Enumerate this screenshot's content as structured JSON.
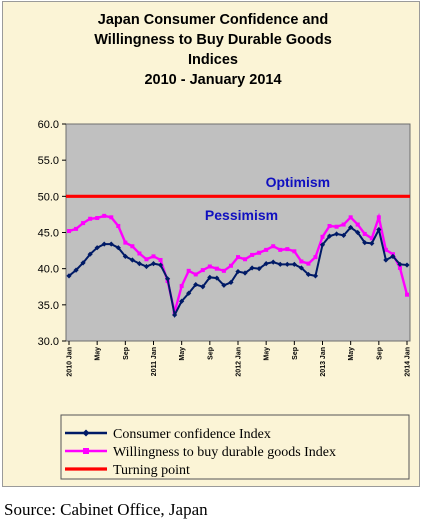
{
  "source": "Source: Cabinet Office, Japan",
  "chart_data": {
    "type": "line",
    "title_lines": [
      "Japan Consumer Confidence and",
      "Willingness to Buy Durable Goods",
      "Indices",
      "2010 -  January 2014"
    ],
    "xlabel": "",
    "ylabel": "",
    "ylim": [
      30.0,
      60.0
    ],
    "yticks": [
      "60.0",
      "55.0",
      "50.0",
      "45.0",
      "40.0",
      "35.0",
      "30.0"
    ],
    "ytick_values": [
      60,
      55,
      50,
      45,
      40,
      35,
      30
    ],
    "x_tick_labels": [
      {
        "index": 0,
        "label": "2010 Jan"
      },
      {
        "index": 4,
        "label": "May"
      },
      {
        "index": 8,
        "label": "Sep"
      },
      {
        "index": 12,
        "label": "2011 Jan"
      },
      {
        "index": 16,
        "label": "May"
      },
      {
        "index": 20,
        "label": "Sep"
      },
      {
        "index": 24,
        "label": "2012 Jan"
      },
      {
        "index": 28,
        "label": "May"
      },
      {
        "index": 32,
        "label": "Sep"
      },
      {
        "index": 36,
        "label": "2013 Jan"
      },
      {
        "index": 40,
        "label": "May"
      },
      {
        "index": 44,
        "label": "Sep"
      },
      {
        "index": 48,
        "label": "2014 Jan"
      }
    ],
    "x_count": 49,
    "grid": false,
    "plot_background": "#c0c0c0",
    "series": [
      {
        "name": "Consumer confidence Index",
        "color": "#001a66",
        "values": [
          39.0,
          39.8,
          40.8,
          42.0,
          42.9,
          43.4,
          43.4,
          42.9,
          41.7,
          41.2,
          40.7,
          40.3,
          40.7,
          40.5,
          38.6,
          33.6,
          35.5,
          36.6,
          37.8,
          37.5,
          38.8,
          38.7,
          37.7,
          38.1,
          39.6,
          39.4,
          40.1,
          40.0,
          40.7,
          40.9,
          40.6,
          40.6,
          40.6,
          40.1,
          39.2,
          39.0,
          43.3,
          44.5,
          44.8,
          44.6,
          45.7,
          45.0,
          43.6,
          43.5,
          45.4,
          41.2,
          41.7,
          40.6,
          40.5
        ]
      },
      {
        "name": "Willingness to buy durable goods Index",
        "color": "#ff00ff",
        "values": [
          45.2,
          45.5,
          46.3,
          46.9,
          47.0,
          47.3,
          47.1,
          45.9,
          43.6,
          43.1,
          42.1,
          41.3,
          41.7,
          41.2,
          38.3,
          34.0,
          37.6,
          39.7,
          39.2,
          39.8,
          40.3,
          40.0,
          39.7,
          40.4,
          41.6,
          41.3,
          41.9,
          42.2,
          42.6,
          43.1,
          42.6,
          42.7,
          42.4,
          41.0,
          40.7,
          41.6,
          44.4,
          45.9,
          45.8,
          46.1,
          47.1,
          46.1,
          44.8,
          44.2,
          47.1,
          42.6,
          42.0,
          40.1,
          36.4
        ]
      },
      {
        "name": "Turning point",
        "color": "#ff0000",
        "values": [
          50,
          50
        ]
      }
    ],
    "annotations": [
      {
        "text": "Optimism",
        "color": "#1010c0",
        "x_index": 32.5,
        "y": 52.0
      },
      {
        "text": "Pessimism",
        "color": "#1010c0",
        "x_index": 24.5,
        "y": 47.4
      }
    ],
    "legend_position": "bottom"
  }
}
